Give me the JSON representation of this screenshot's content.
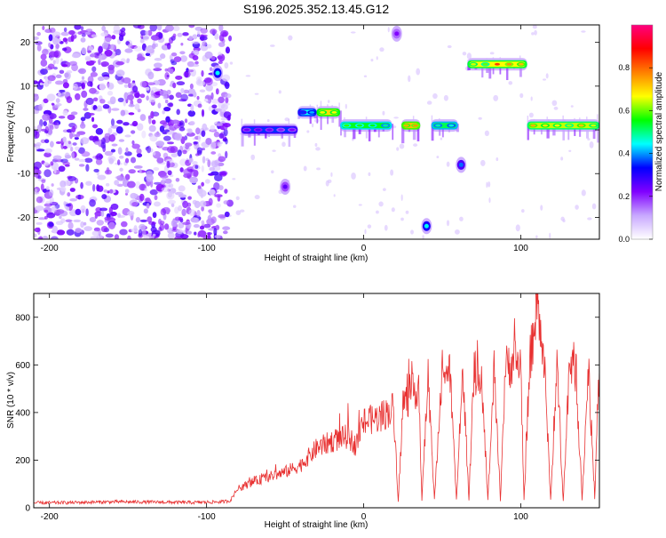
{
  "title": "S196.2025.352.13.45.G12",
  "chart_data": [
    {
      "type": "heatmap",
      "name": "spectrogram",
      "xlabel": "Height of straight line (km)",
      "ylabel": "Frequency (Hz)",
      "xlim": [
        -210,
        150
      ],
      "ylim": [
        -25,
        24
      ],
      "xticks": [
        -200,
        -100,
        0,
        100
      ],
      "yticks": [
        -20,
        -10,
        0,
        10,
        20
      ],
      "colorbar": {
        "label": "Normalized spectral amplitude",
        "range": [
          0.0,
          1.0
        ],
        "ticks": [
          0.0,
          0.2,
          0.4,
          0.6,
          0.8
        ],
        "tick_labels": [
          "0.0",
          "0.2",
          "0.4",
          "0.6",
          "0.8"
        ],
        "colors": [
          "#ffffff",
          "#c8a8ff",
          "#8000ff",
          "#0000ff",
          "#00ffff",
          "#00ff00",
          "#ffff00",
          "#ff8000",
          "#ff0000",
          "#ff0080"
        ]
      },
      "noise_region": {
        "x_range": [
          -210,
          -85
        ],
        "y_range": [
          -25,
          24
        ],
        "amplitude": 0.15
      },
      "bands": [
        {
          "x_range": [
            -78,
            -42
          ],
          "freq": 0,
          "amplitude": 0.28
        },
        {
          "x_range": [
            -42,
            -30
          ],
          "freq": 4,
          "amplitude": 0.45
        },
        {
          "x_range": [
            -30,
            -15
          ],
          "freq": 4,
          "amplitude": 0.9
        },
        {
          "x_range": [
            -15,
            18
          ],
          "freq": 1,
          "amplitude": 0.62
        },
        {
          "x_range": [
            24,
            36
          ],
          "freq": 1,
          "amplitude": 0.95
        },
        {
          "x_range": [
            43,
            60
          ],
          "freq": 1,
          "amplitude": 0.58
        },
        {
          "x_range": [
            66,
            104
          ],
          "freq": 15,
          "amplitude": 0.85
        },
        {
          "x_range": [
            104,
            150
          ],
          "freq": 1,
          "amplitude": 0.8
        }
      ],
      "spots": [
        {
          "x": -93,
          "freq": 13,
          "amplitude": 0.45
        },
        {
          "x": 40,
          "freq": -22,
          "amplitude": 0.45
        },
        {
          "x": 62,
          "freq": -8,
          "amplitude": 0.38
        },
        {
          "x": -50,
          "freq": -13,
          "amplitude": 0.25
        },
        {
          "x": 21,
          "freq": 22,
          "amplitude": 0.22
        }
      ]
    },
    {
      "type": "line",
      "name": "snr",
      "xlabel": "Height of straight line (km)",
      "ylabel": "SNR (10 * v/v)",
      "xlim": [
        -210,
        150
      ],
      "ylim": [
        0,
        900
      ],
      "xticks": [
        -200,
        -100,
        0,
        100
      ],
      "yticks": [
        0,
        200,
        400,
        600,
        800
      ],
      "color": "#e83030",
      "series": [
        {
          "name": "SNR",
          "x": [
            -210,
            -185,
            -160,
            -135,
            -110,
            -90,
            -85,
            -80,
            -70,
            -60,
            -50,
            -40,
            -30,
            -20,
            -10,
            -5,
            0,
            5,
            10,
            15,
            19,
            22,
            25,
            30,
            35,
            37,
            41,
            45,
            50,
            55,
            59,
            63,
            67,
            70,
            75,
            79,
            83,
            87,
            90,
            95,
            100,
            102,
            106,
            110,
            115,
            119,
            123,
            127,
            131,
            135,
            139,
            143,
            147,
            150
          ],
          "y": [
            20,
            22,
            25,
            24,
            22,
            25,
            30,
            80,
            110,
            130,
            150,
            180,
            250,
            280,
            300,
            260,
            360,
            370,
            380,
            400,
            420,
            30,
            440,
            470,
            520,
            30,
            560,
            30,
            590,
            560,
            30,
            580,
            30,
            560,
            570,
            30,
            560,
            30,
            580,
            620,
            600,
            30,
            620,
            870,
            600,
            30,
            600,
            30,
            620,
            580,
            30,
            600,
            30,
            590
          ]
        }
      ]
    }
  ]
}
